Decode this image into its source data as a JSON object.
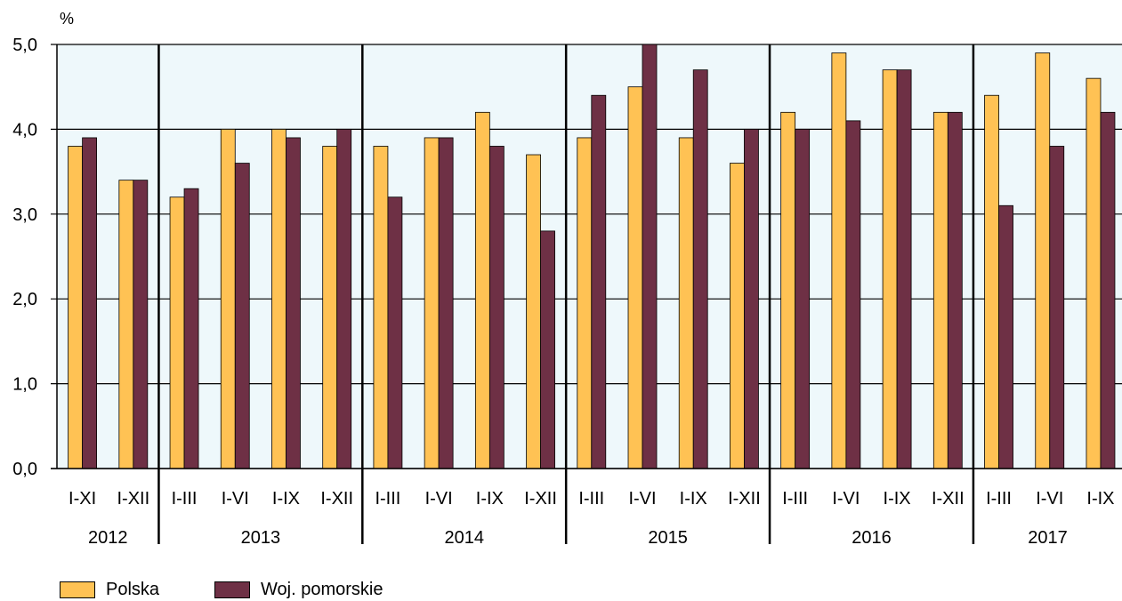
{
  "chart_data": {
    "type": "bar",
    "unit_label": "%",
    "ylim": [
      0,
      5
    ],
    "yticks": [
      "0,0",
      "1,0",
      "2,0",
      "3,0",
      "4,0",
      "5,0"
    ],
    "grid": true,
    "legend_position": "bottom-left",
    "plot_background": "#eef8fb",
    "groups": [
      {
        "year": "2012",
        "periods": [
          "I-XI",
          "I-XII"
        ]
      },
      {
        "year": "2013",
        "periods": [
          "I-III",
          "I-VI",
          "I-IX",
          "I-XII"
        ]
      },
      {
        "year": "2014",
        "periods": [
          "I-III",
          "I-VI",
          "I-IX",
          "I-XII"
        ]
      },
      {
        "year": "2015",
        "periods": [
          "I-III",
          "I-VI",
          "I-IX",
          "I-XII"
        ]
      },
      {
        "year": "2016",
        "periods": [
          "I-III",
          "I-VI",
          "I-IX",
          "I-XII"
        ]
      },
      {
        "year": "2017",
        "periods": [
          "I-III",
          "I-VI",
          "I-IX"
        ]
      }
    ],
    "series": [
      {
        "name": "Polska",
        "color": "#ffc254",
        "values": [
          3.8,
          3.4,
          3.2,
          4.0,
          4.0,
          3.8,
          3.8,
          3.9,
          4.2,
          3.7,
          3.9,
          4.5,
          3.9,
          3.6,
          4.2,
          4.9,
          4.7,
          4.2,
          4.4,
          4.9,
          4.6
        ]
      },
      {
        "name": "Woj. pomorskie",
        "color": "#6e3045",
        "values": [
          3.9,
          3.4,
          3.3,
          3.6,
          3.9,
          4.0,
          3.2,
          3.9,
          3.8,
          2.8,
          4.4,
          5.0,
          4.7,
          4.0,
          4.0,
          4.1,
          4.7,
          4.2,
          3.1,
          3.8,
          4.2
        ]
      }
    ]
  }
}
